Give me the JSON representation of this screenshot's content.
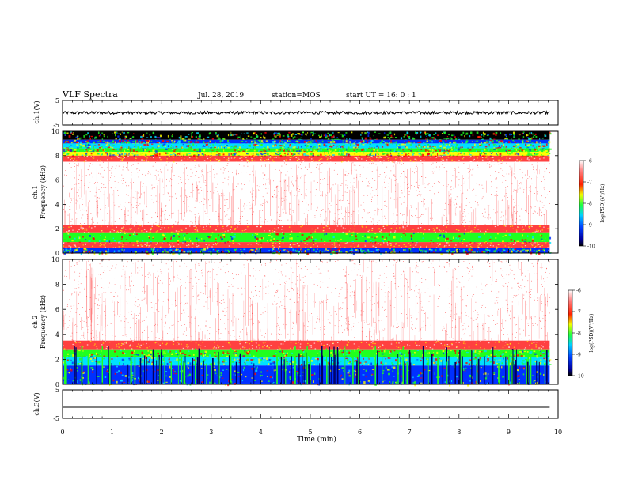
{
  "header": {
    "title": "VLF Spectra",
    "date": "Jul. 28, 2019",
    "station": "station=MOS",
    "start": "start UT =  16: 0 : 1"
  },
  "chart_data": [
    {
      "id": "ch1-waveform",
      "type": "line",
      "ylabel": "ch.1(V)",
      "xlim": [
        0,
        10
      ],
      "ylim": [
        -5,
        5
      ],
      "yticks": [
        -5,
        5
      ],
      "series": [
        {
          "x_range": [
            0,
            9.83
          ],
          "level": 0,
          "noise_amplitude": 0.6,
          "color": "#000000"
        }
      ]
    },
    {
      "id": "ch1-spectrogram",
      "type": "heatmap",
      "ylabel": "ch.1\nFrequency (kHz)",
      "xlim": [
        0,
        10
      ],
      "ylim": [
        0,
        10
      ],
      "yticks": [
        0,
        2,
        4,
        6,
        8,
        10
      ],
      "x_extent": [
        0,
        9.83
      ],
      "bands": [
        {
          "f": [
            9.3,
            10.0
          ],
          "level": "black"
        },
        {
          "f": [
            9.0,
            9.3
          ],
          "level": "blue"
        },
        {
          "f": [
            8.6,
            9.0
          ],
          "level": "cyan"
        },
        {
          "f": [
            8.3,
            8.6
          ],
          "level": "green"
        },
        {
          "f": [
            8.0,
            8.3
          ],
          "level": "yellow"
        },
        {
          "f": [
            7.5,
            8.0
          ],
          "level": "red-dense"
        },
        {
          "f": [
            2.3,
            7.5
          ],
          "level": "red-sparse"
        },
        {
          "f": [
            1.7,
            2.3
          ],
          "level": "red-dense"
        },
        {
          "f": [
            0.9,
            1.7
          ],
          "level": "green"
        },
        {
          "f": [
            0.4,
            0.9
          ],
          "level": "red-dense"
        },
        {
          "f": [
            0.0,
            0.4
          ],
          "level": "blue"
        }
      ],
      "colorbar": {
        "label": "log(PSD)(V²/Hz)",
        "ticks": [
          -6,
          -7,
          -8,
          -9,
          -10
        ],
        "range": [
          -10,
          -6
        ]
      }
    },
    {
      "id": "ch2-spectrogram",
      "type": "heatmap",
      "ylabel": "ch.2\nFrequency (kHz)",
      "xlim": [
        0,
        10
      ],
      "ylim": [
        0,
        10
      ],
      "yticks": [
        0,
        2,
        4,
        6,
        8,
        10
      ],
      "x_extent": [
        0,
        9.83
      ],
      "bands": [
        {
          "f": [
            3.5,
            10.0
          ],
          "level": "red-sparse"
        },
        {
          "f": [
            2.8,
            3.5
          ],
          "level": "red-dense"
        },
        {
          "f": [
            2.2,
            2.8
          ],
          "level": "green"
        },
        {
          "f": [
            1.5,
            2.2
          ],
          "level": "cyan"
        },
        {
          "f": [
            0.0,
            1.5
          ],
          "level": "blue"
        }
      ],
      "colorbar": {
        "label": "log(PSD)(V²/Hz)",
        "ticks": [
          -6,
          -7,
          -8,
          -9,
          -10
        ],
        "range": [
          -10,
          -6
        ]
      }
    },
    {
      "id": "ch3-waveform",
      "type": "line",
      "ylabel": "ch.3(V)",
      "xlabel": "Time (min)",
      "xlim": [
        0,
        10
      ],
      "xticks": [
        0,
        1,
        2,
        3,
        4,
        5,
        6,
        7,
        8,
        9,
        10
      ],
      "ylim": [
        -5,
        5
      ],
      "yticks": [
        -5,
        5
      ],
      "series": [
        {
          "x_range": [
            0,
            9.83
          ],
          "level": -1.1,
          "noise_amplitude": 0.0,
          "color": "#000000"
        }
      ]
    }
  ],
  "colors": {
    "black": "#000000",
    "blue": "#0030ff",
    "cyan": "#00e0ff",
    "green": "#20ff20",
    "yellow": "#ffff00",
    "red": "#ff0000"
  }
}
